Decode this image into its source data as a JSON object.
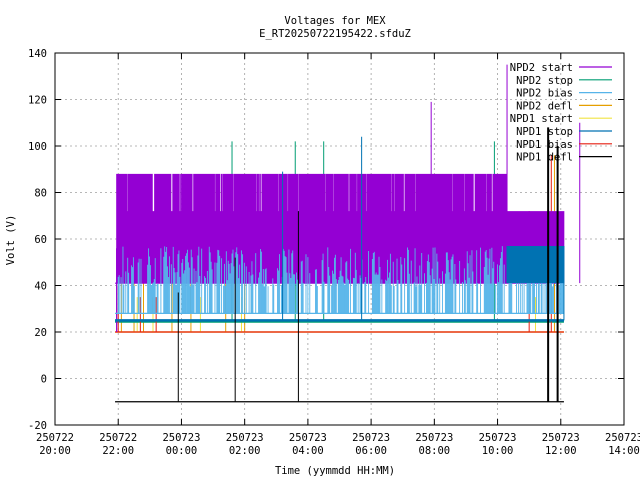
{
  "chart_data": {
    "type": "line",
    "title": "Voltages for MEX",
    "subtitle": "E_RT20250722195422.sfduZ",
    "xlabel": "Time (yymmdd HH:MM)",
    "ylabel": "Volt (V)",
    "ylim": [
      -20,
      140
    ],
    "yticks": [
      -20,
      0,
      20,
      40,
      60,
      80,
      100,
      120,
      140
    ],
    "xlim_hours": [
      20,
      38
    ],
    "xticks": [
      {
        "date": "250722",
        "time": "20:00",
        "hour": 20
      },
      {
        "date": "250722",
        "time": "22:00",
        "hour": 22
      },
      {
        "date": "250723",
        "time": "00:00",
        "hour": 24
      },
      {
        "date": "250723",
        "time": "02:00",
        "hour": 26
      },
      {
        "date": "250723",
        "time": "04:00",
        "hour": 28
      },
      {
        "date": "250723",
        "time": "06:00",
        "hour": 30
      },
      {
        "date": "250723",
        "time": "08:00",
        "hour": 32
      },
      {
        "date": "250723",
        "time": "10:00",
        "hour": 34
      },
      {
        "date": "250723",
        "time": "12:00",
        "hour": 36
      },
      {
        "date": "250723",
        "time": "14:00",
        "hour": 38
      }
    ],
    "grid": true,
    "legend_position": "top-right",
    "time_range_hours": [
      21.9,
      36.1
    ],
    "series": [
      {
        "name": "NPD2 start",
        "color": "#9400d3",
        "baseline": 41,
        "low_band": [
          41,
          72
        ],
        "high_band": [
          72,
          88
        ],
        "high_band_until": 34.3,
        "spikes": [
          [
            31.9,
            119
          ],
          [
            34.3,
            135
          ],
          [
            36.6,
            110
          ]
        ]
      },
      {
        "name": "NPD2 stop",
        "color": "#009e73",
        "baseline": 24.5,
        "spikes": [
          [
            25.6,
            102
          ],
          [
            27.6,
            102
          ],
          [
            28.5,
            102
          ],
          [
            33.9,
            102
          ],
          [
            35.6,
            102
          ]
        ]
      },
      {
        "name": "NPD2 bias",
        "color": "#56b4e9",
        "baseline": 28,
        "band": [
          28,
          57
        ],
        "band_from": 22.0
      },
      {
        "name": "NPD2 defl",
        "color": "#e69f00",
        "baseline": 20,
        "spikes": [
          [
            22.1,
            41
          ],
          [
            22.5,
            41
          ],
          [
            22.8,
            41
          ],
          [
            23.7,
            41
          ],
          [
            24.3,
            41
          ],
          [
            25.4,
            41
          ],
          [
            26.0,
            41
          ],
          [
            35.8,
            96
          ]
        ]
      },
      {
        "name": "NPD1 start",
        "color": "#f0e442",
        "baseline": 20,
        "spikes": [
          [
            22.6,
            35
          ],
          [
            23.1,
            35
          ],
          [
            24.6,
            35
          ],
          [
            25.9,
            35
          ],
          [
            35.2,
            35
          ]
        ]
      },
      {
        "name": "NPD1 stop",
        "color": "#0072b2",
        "baseline": 25,
        "band": [
          41,
          57
        ],
        "band_from": 34.3,
        "spikes": [
          [
            29.7,
            104
          ],
          [
            27.2,
            89
          ],
          [
            36.1,
            57
          ]
        ]
      },
      {
        "name": "NPD1 bias",
        "color": "#e51e10",
        "baseline": 20,
        "spikes": [
          [
            22.0,
            40
          ],
          [
            22.7,
            35
          ],
          [
            23.2,
            35
          ],
          [
            35.0,
            72
          ],
          [
            35.7,
            96
          ]
        ]
      },
      {
        "name": "NPD1 defl",
        "color": "#000000",
        "baseline": -10,
        "spikes": [
          [
            23.9,
            37
          ],
          [
            25.7,
            52
          ],
          [
            27.7,
            72
          ],
          [
            35.6,
            108
          ],
          [
            35.9,
            100
          ]
        ]
      }
    ]
  }
}
